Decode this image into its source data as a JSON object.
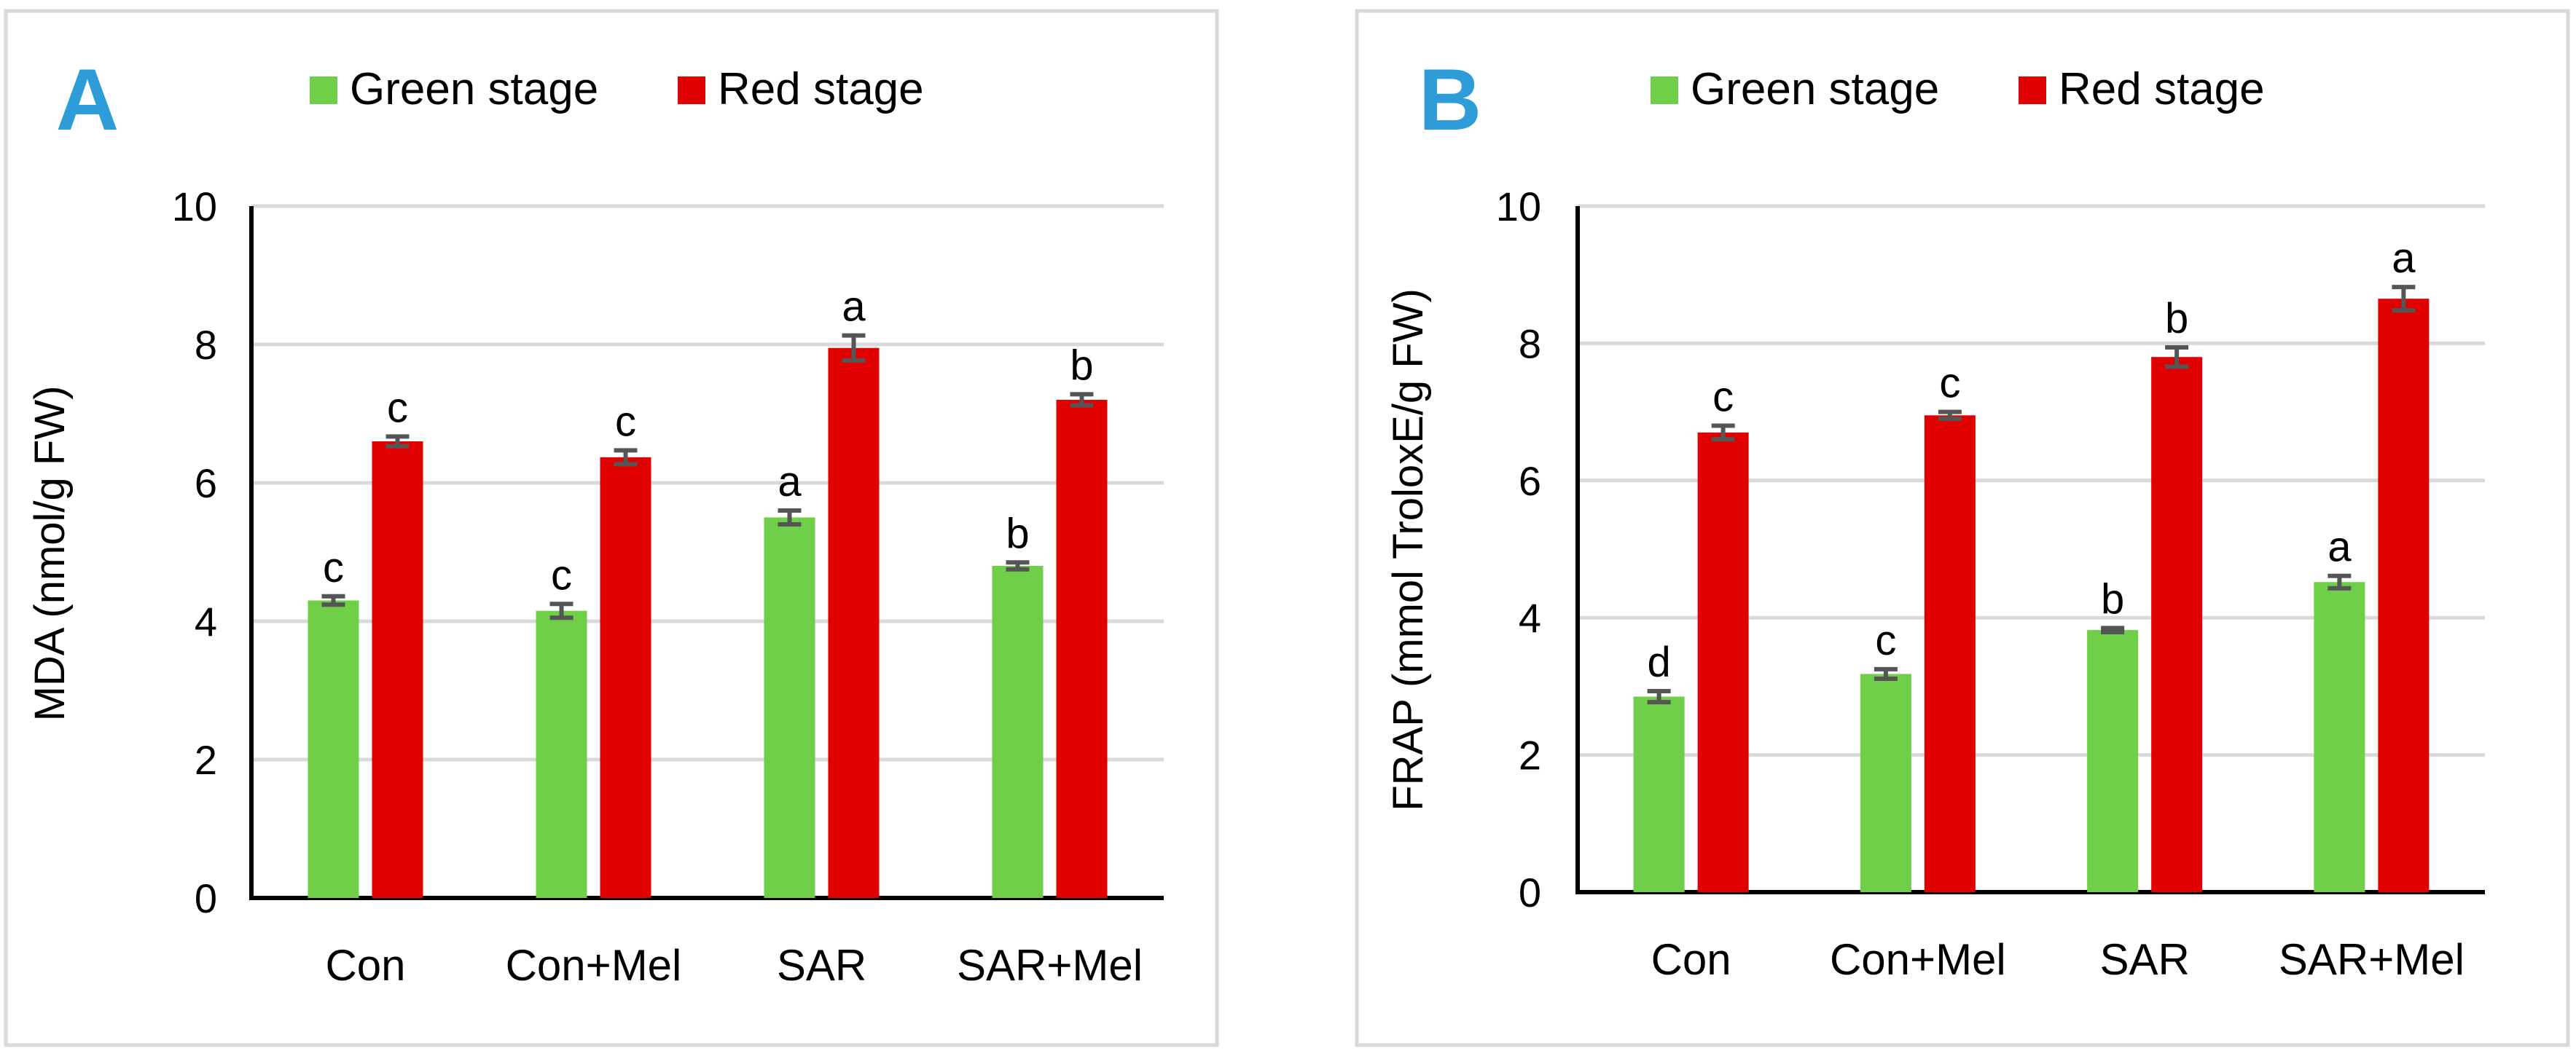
{
  "colors": {
    "green": "#6fcf48",
    "red": "#e00000",
    "panel_label": "#2e9cd8",
    "error": "#555555"
  },
  "legend": [
    "Green stage",
    "Red stage"
  ],
  "chart_data": [
    {
      "type": "bar",
      "panel": "A",
      "title": "",
      "xlabel": "",
      "ylabel": "MDA (nmol/g FW)",
      "ylim": [
        0,
        10
      ],
      "yticks": [
        0,
        2,
        4,
        6,
        8,
        10
      ],
      "categories": [
        "Con",
        "Con+Mel",
        "SAR",
        "SAR+Mel"
      ],
      "series": [
        {
          "name": "Green stage",
          "values": [
            4.3,
            4.15,
            5.5,
            4.8
          ],
          "errors": [
            0.06,
            0.1,
            0.1,
            0.05
          ],
          "letters": [
            "c",
            "c",
            "a",
            "b"
          ]
        },
        {
          "name": "Red stage",
          "values": [
            6.6,
            6.37,
            7.95,
            7.2
          ],
          "errors": [
            0.07,
            0.1,
            0.18,
            0.08
          ],
          "letters": [
            "c",
            "c",
            "a",
            "b"
          ]
        }
      ]
    },
    {
      "type": "bar",
      "panel": "B",
      "title": "",
      "xlabel": "",
      "ylabel": "FRAP (mmol TroloxE/g FW)",
      "ylim": [
        0,
        10
      ],
      "yticks": [
        0,
        2,
        4,
        6,
        8,
        10
      ],
      "categories": [
        "Con",
        "Con+Mel",
        "SAR",
        "SAR+Mel"
      ],
      "series": [
        {
          "name": "Green stage",
          "values": [
            2.85,
            3.18,
            3.82,
            4.52
          ],
          "errors": [
            0.08,
            0.07,
            0.03,
            0.09
          ],
          "letters": [
            "d",
            "c",
            "b",
            "a"
          ]
        },
        {
          "name": "Red stage",
          "values": [
            6.7,
            6.95,
            7.8,
            8.65
          ],
          "errors": [
            0.1,
            0.05,
            0.14,
            0.17
          ],
          "letters": [
            "c",
            "c",
            "b",
            "a"
          ]
        }
      ]
    }
  ]
}
